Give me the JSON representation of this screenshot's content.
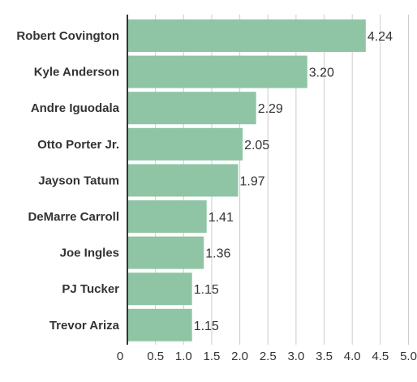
{
  "chart_data": {
    "type": "bar",
    "orientation": "horizontal",
    "title": "",
    "xlabel": "",
    "ylabel": "",
    "categories": [
      "Robert Covington",
      "Kyle Anderson",
      "Andre Iguodala",
      "Otto Porter Jr.",
      "Jayson Tatum",
      "DeMarre Carroll",
      "Joe Ingles",
      "PJ Tucker",
      "Trevor Ariza"
    ],
    "values": [
      4.24,
      3.2,
      2.29,
      2.05,
      1.97,
      1.41,
      1.36,
      1.15,
      1.15
    ],
    "value_labels": [
      "4.24",
      "3.20",
      "2.29",
      "2.05",
      "1.97",
      "1.41",
      "1.36",
      "1.15",
      "1.15"
    ],
    "xlim": [
      0,
      5.0
    ],
    "xticks": [
      "0",
      "0.5",
      "1.0",
      "1.5",
      "2.0",
      "2.5",
      "3.0",
      "3.5",
      "4.0",
      "4.5",
      "5.0"
    ],
    "grid": true,
    "legend": "none",
    "colors": {
      "bar": "#8fc5a5",
      "grid": "#cccccc",
      "axis": "#333333",
      "text": "#333333"
    }
  }
}
